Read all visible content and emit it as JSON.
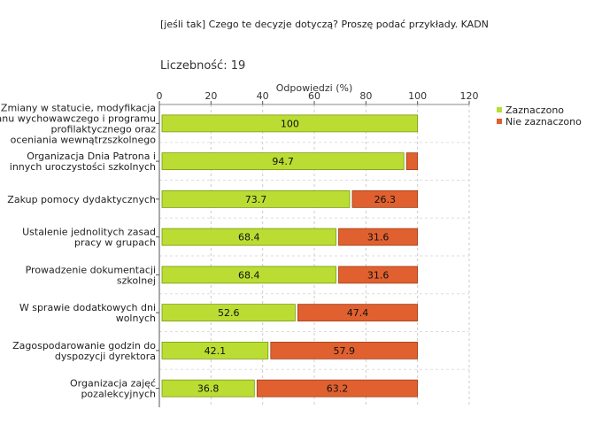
{
  "header": {
    "title": "[jeśli tak] Czego te decyzje dotyczą? Proszę podać przykłady. KADN",
    "count_label": "Liczebność:",
    "count_value": "19"
  },
  "chart_data": {
    "type": "bar",
    "orientation": "horizontal",
    "stacked": true,
    "xlabel": "Odpowiedzi (%)",
    "xlim": [
      0,
      120
    ],
    "xticks": [
      0,
      20,
      40,
      60,
      80,
      100,
      120
    ],
    "grid": true,
    "legend_position": "top-right",
    "categories": [
      [
        "Zmiany w statucie, modyfikacja",
        "planu wychowawczego i programu",
        "profilaktycznego oraz",
        "oceniania wewnątrzszkolnego"
      ],
      [
        "Organizacja Dnia Patrona i",
        "innych uroczystości szkolnych"
      ],
      [
        "Zakup pomocy dydaktycznych"
      ],
      [
        "Ustalenie jednolitych zasad",
        "pracy w grupach"
      ],
      [
        "Prowadzenie dokumentacji",
        "szkolnej"
      ],
      [
        "W sprawie dodatkowych dni",
        "wolnych"
      ],
      [
        "Zagospodarowanie godzin do",
        "dyspozycji dyrektora"
      ],
      [
        "Organizacja zajęć",
        "pozalekcyjnych"
      ]
    ],
    "series": [
      {
        "name": "Zaznaczono",
        "color": "#bbdd33",
        "values": [
          100,
          94.7,
          73.7,
          68.4,
          68.4,
          52.6,
          42.1,
          36.8
        ],
        "labels": [
          "100",
          "94.7",
          "73.7",
          "68.4",
          "68.4",
          "52.6",
          "42.1",
          "36.8"
        ]
      },
      {
        "name": "Nie zaznaczono",
        "color": "#e06030",
        "values": [
          0,
          5.3,
          26.3,
          31.6,
          31.6,
          47.4,
          57.9,
          63.2
        ],
        "labels": [
          "",
          "",
          "26.3",
          "31.6",
          "31.6",
          "47.4",
          "57.9",
          "63.2"
        ]
      }
    ]
  }
}
